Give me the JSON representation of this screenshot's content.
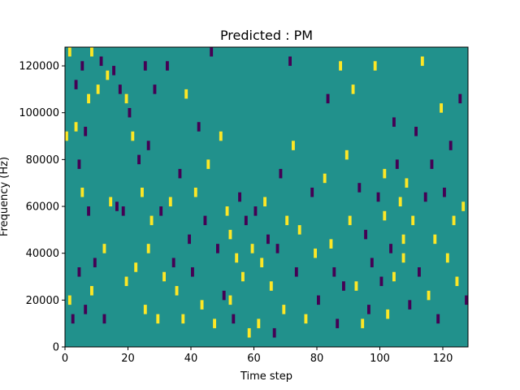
{
  "chart_data": {
    "type": "heatmap",
    "title": "Predicted : PM",
    "xlabel": "Time step",
    "ylabel": "Frequency (Hz)",
    "xlim": [
      0,
      128
    ],
    "ylim": [
      0,
      128000
    ],
    "xticks": [
      0,
      20,
      40,
      60,
      80,
      100,
      120
    ],
    "yticks": [
      0,
      20000,
      40000,
      60000,
      80000,
      100000,
      120000
    ],
    "grid": false,
    "colormap": "viridis",
    "value_levels": {
      "low": -1,
      "background": 0,
      "high": 1
    },
    "colors": {
      "background": "#21918c",
      "high": "#fde725",
      "low": "#440154"
    },
    "cell_size": {
      "time_steps": 1,
      "frequency_hz": 4000
    },
    "cells": [
      {
        "t": 1,
        "f": 124000,
        "v": 1
      },
      {
        "t": 2,
        "f": 10000,
        "v": -1
      },
      {
        "t": 1,
        "f": 18000,
        "v": 1
      },
      {
        "t": 0,
        "f": 88000,
        "v": 1
      },
      {
        "t": 3,
        "f": 92000,
        "v": 1
      },
      {
        "t": 3,
        "f": 110000,
        "v": -1
      },
      {
        "t": 4,
        "f": 76000,
        "v": -1
      },
      {
        "t": 4,
        "f": 30000,
        "v": -1
      },
      {
        "t": 5,
        "f": 64000,
        "v": 1
      },
      {
        "t": 5,
        "f": 118000,
        "v": -1
      },
      {
        "t": 6,
        "f": 14000,
        "v": -1
      },
      {
        "t": 6,
        "f": 90000,
        "v": -1
      },
      {
        "t": 7,
        "f": 56000,
        "v": -1
      },
      {
        "t": 7,
        "f": 104000,
        "v": 1
      },
      {
        "t": 8,
        "f": 124000,
        "v": 1
      },
      {
        "t": 8,
        "f": 22000,
        "v": 1
      },
      {
        "t": 9,
        "f": 34000,
        "v": -1
      },
      {
        "t": 10,
        "f": 108000,
        "v": 1
      },
      {
        "t": 11,
        "f": 120000,
        "v": -1
      },
      {
        "t": 12,
        "f": 40000,
        "v": 1
      },
      {
        "t": 12,
        "f": 10000,
        "v": -1
      },
      {
        "t": 13,
        "f": 114000,
        "v": 1
      },
      {
        "t": 14,
        "f": 60000,
        "v": 1
      },
      {
        "t": 15,
        "f": 116000,
        "v": -1
      },
      {
        "t": 16,
        "f": 58000,
        "v": -1
      },
      {
        "t": 17,
        "f": 108000,
        "v": -1
      },
      {
        "t": 18,
        "f": 56000,
        "v": -1
      },
      {
        "t": 19,
        "f": 26000,
        "v": 1
      },
      {
        "t": 19,
        "f": 104000,
        "v": 1
      },
      {
        "t": 20,
        "f": 98000,
        "v": -1
      },
      {
        "t": 21,
        "f": 88000,
        "v": 1
      },
      {
        "t": 22,
        "f": 32000,
        "v": 1
      },
      {
        "t": 23,
        "f": 78000,
        "v": -1
      },
      {
        "t": 24,
        "f": 64000,
        "v": 1
      },
      {
        "t": 25,
        "f": 118000,
        "v": -1
      },
      {
        "t": 25,
        "f": 14000,
        "v": 1
      },
      {
        "t": 26,
        "f": 40000,
        "v": 1
      },
      {
        "t": 26,
        "f": 84000,
        "v": -1
      },
      {
        "t": 27,
        "f": 52000,
        "v": 1
      },
      {
        "t": 28,
        "f": 108000,
        "v": -1
      },
      {
        "t": 29,
        "f": 10000,
        "v": 1
      },
      {
        "t": 30,
        "f": 56000,
        "v": -1
      },
      {
        "t": 31,
        "f": 28000,
        "v": 1
      },
      {
        "t": 32,
        "f": 118000,
        "v": -1
      },
      {
        "t": 33,
        "f": 60000,
        "v": 1
      },
      {
        "t": 34,
        "f": 34000,
        "v": -1
      },
      {
        "t": 35,
        "f": 22000,
        "v": 1
      },
      {
        "t": 36,
        "f": 72000,
        "v": -1
      },
      {
        "t": 37,
        "f": 10000,
        "v": 1
      },
      {
        "t": 38,
        "f": 106000,
        "v": 1
      },
      {
        "t": 39,
        "f": 44000,
        "v": -1
      },
      {
        "t": 40,
        "f": 30000,
        "v": -1
      },
      {
        "t": 41,
        "f": 64000,
        "v": 1
      },
      {
        "t": 42,
        "f": 92000,
        "v": -1
      },
      {
        "t": 43,
        "f": 16000,
        "v": 1
      },
      {
        "t": 44,
        "f": 52000,
        "v": -1
      },
      {
        "t": 45,
        "f": 76000,
        "v": 1
      },
      {
        "t": 46,
        "f": 124000,
        "v": -1
      },
      {
        "t": 47,
        "f": 8000,
        "v": 1
      },
      {
        "t": 48,
        "f": 40000,
        "v": -1
      },
      {
        "t": 49,
        "f": 88000,
        "v": 1
      },
      {
        "t": 50,
        "f": 20000,
        "v": -1
      },
      {
        "t": 51,
        "f": 56000,
        "v": 1
      },
      {
        "t": 52,
        "f": 18000,
        "v": 1
      },
      {
        "t": 52,
        "f": 46000,
        "v": 1
      },
      {
        "t": 53,
        "f": 10000,
        "v": -1
      },
      {
        "t": 54,
        "f": 36000,
        "v": 1
      },
      {
        "t": 55,
        "f": 62000,
        "v": -1
      },
      {
        "t": 56,
        "f": 28000,
        "v": 1
      },
      {
        "t": 57,
        "f": 52000,
        "v": -1
      },
      {
        "t": 58,
        "f": 4000,
        "v": 1
      },
      {
        "t": 59,
        "f": 40000,
        "v": 1
      },
      {
        "t": 60,
        "f": 56000,
        "v": -1
      },
      {
        "t": 61,
        "f": 8000,
        "v": 1
      },
      {
        "t": 62,
        "f": 34000,
        "v": 1
      },
      {
        "t": 63,
        "f": 60000,
        "v": 1
      },
      {
        "t": 64,
        "f": 44000,
        "v": -1
      },
      {
        "t": 65,
        "f": 24000,
        "v": 1
      },
      {
        "t": 66,
        "f": 4000,
        "v": -1
      },
      {
        "t": 67,
        "f": 40000,
        "v": -1
      },
      {
        "t": 68,
        "f": 72000,
        "v": -1
      },
      {
        "t": 69,
        "f": 14000,
        "v": 1
      },
      {
        "t": 70,
        "f": 52000,
        "v": 1
      },
      {
        "t": 71,
        "f": 120000,
        "v": -1
      },
      {
        "t": 72,
        "f": 84000,
        "v": 1
      },
      {
        "t": 73,
        "f": 30000,
        "v": -1
      },
      {
        "t": 74,
        "f": 48000,
        "v": 1
      },
      {
        "t": 76,
        "f": 10000,
        "v": 1
      },
      {
        "t": 78,
        "f": 64000,
        "v": -1
      },
      {
        "t": 79,
        "f": 38000,
        "v": 1
      },
      {
        "t": 80,
        "f": 18000,
        "v": -1
      },
      {
        "t": 82,
        "f": 70000,
        "v": 1
      },
      {
        "t": 83,
        "f": 104000,
        "v": -1
      },
      {
        "t": 84,
        "f": 42000,
        "v": 1
      },
      {
        "t": 85,
        "f": 30000,
        "v": -1
      },
      {
        "t": 86,
        "f": 8000,
        "v": -1
      },
      {
        "t": 87,
        "f": 118000,
        "v": 1
      },
      {
        "t": 88,
        "f": 24000,
        "v": -1
      },
      {
        "t": 89,
        "f": 80000,
        "v": 1
      },
      {
        "t": 90,
        "f": 52000,
        "v": 1
      },
      {
        "t": 91,
        "f": 108000,
        "v": 1
      },
      {
        "t": 92,
        "f": 24000,
        "v": 1
      },
      {
        "t": 93,
        "f": 66000,
        "v": -1
      },
      {
        "t": 94,
        "f": 8000,
        "v": 1
      },
      {
        "t": 95,
        "f": 46000,
        "v": -1
      },
      {
        "t": 96,
        "f": 14000,
        "v": -1
      },
      {
        "t": 97,
        "f": 34000,
        "v": -1
      },
      {
        "t": 98,
        "f": 118000,
        "v": 1
      },
      {
        "t": 99,
        "f": 62000,
        "v": -1
      },
      {
        "t": 100,
        "f": 26000,
        "v": -1
      },
      {
        "t": 101,
        "f": 54000,
        "v": 1
      },
      {
        "t": 101,
        "f": 72000,
        "v": 1
      },
      {
        "t": 102,
        "f": 12000,
        "v": 1
      },
      {
        "t": 103,
        "f": 40000,
        "v": -1
      },
      {
        "t": 104,
        "f": 94000,
        "v": -1
      },
      {
        "t": 104,
        "f": 28000,
        "v": 1
      },
      {
        "t": 105,
        "f": 76000,
        "v": -1
      },
      {
        "t": 106,
        "f": 60000,
        "v": 1
      },
      {
        "t": 107,
        "f": 36000,
        "v": 1
      },
      {
        "t": 107,
        "f": 44000,
        "v": 1
      },
      {
        "t": 108,
        "f": 68000,
        "v": 1
      },
      {
        "t": 109,
        "f": 16000,
        "v": -1
      },
      {
        "t": 110,
        "f": 52000,
        "v": 1
      },
      {
        "t": 111,
        "f": 90000,
        "v": -1
      },
      {
        "t": 112,
        "f": 30000,
        "v": -1
      },
      {
        "t": 113,
        "f": 120000,
        "v": 1
      },
      {
        "t": 114,
        "f": 62000,
        "v": -1
      },
      {
        "t": 115,
        "f": 20000,
        "v": 1
      },
      {
        "t": 116,
        "f": 76000,
        "v": -1
      },
      {
        "t": 117,
        "f": 44000,
        "v": 1
      },
      {
        "t": 118,
        "f": 10000,
        "v": -1
      },
      {
        "t": 119,
        "f": 100000,
        "v": 1
      },
      {
        "t": 120,
        "f": 64000,
        "v": -1
      },
      {
        "t": 121,
        "f": 36000,
        "v": 1
      },
      {
        "t": 122,
        "f": 84000,
        "v": -1
      },
      {
        "t": 123,
        "f": 52000,
        "v": 1
      },
      {
        "t": 124,
        "f": 26000,
        "v": 1
      },
      {
        "t": 125,
        "f": 104000,
        "v": -1
      },
      {
        "t": 126,
        "f": 58000,
        "v": 1
      },
      {
        "t": 127,
        "f": 18000,
        "v": -1
      }
    ]
  }
}
